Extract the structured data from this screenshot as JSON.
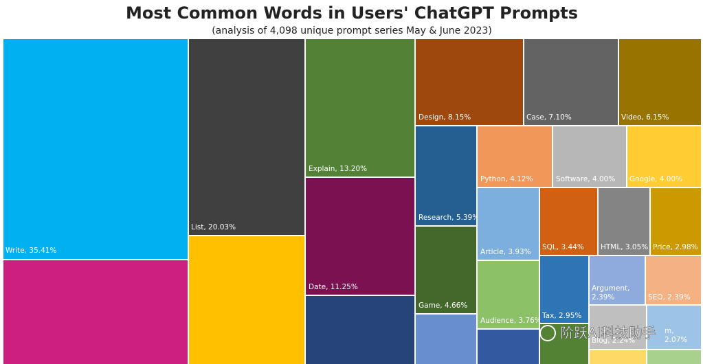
{
  "chart_data": {
    "type": "treemap",
    "title": "Most Common Words in Users' ChatGPT Prompts",
    "subtitle": "(analysis of 4,098 unique prompt series May & June 2023)",
    "labels": [
      "Write, 35.41%",
      "List, 20.03%",
      "Explain, 13.20%",
      "Date, 11.25%",
      "Design, 8.15%",
      "Case, 7.10%",
      "Video, 6.15%",
      "Research, 5.39%",
      "Game, 4.66%",
      "Python, 4.12%",
      "Software, 4.00%",
      "Google, 4.00%",
      "Article, 3.93%",
      "Audience, 3.76%",
      "SQL, 3.44%",
      "HTML, 3.05%",
      "Price, 2.98%",
      "Tax, 2.95%",
      [
        "Argument,",
        "2.39%"
      ],
      "SEO, 2.39%",
      "Blog, 2.24%",
      [
        "m,",
        "2.07%"
      ]
    ],
    "values": [
      35.41,
      20.03,
      13.2,
      11.25,
      8.15,
      7.1,
      6.15,
      5.39,
      4.66,
      4.12,
      4.0,
      4.0,
      3.93,
      3.76,
      3.44,
      3.05,
      2.98,
      2.95,
      2.39,
      2.39,
      2.24,
      2.07
    ],
    "colors": [
      "#00b0f0",
      "#404040",
      "#538135",
      "#7b1150",
      "#9e480e",
      "#636363",
      "#997300",
      "#255e91",
      "#43682b",
      "#f1975a",
      "#b7b7b7",
      "#ffcd33",
      "#7cafdd",
      "#8cc168",
      "#d26012",
      "#848484",
      "#cc9a00",
      "#2e75b6",
      "#8faadc",
      "#f4b183",
      "#bfbfbf",
      "#9dc3e6"
    ],
    "watermark": "阶跃AI科技助手"
  }
}
